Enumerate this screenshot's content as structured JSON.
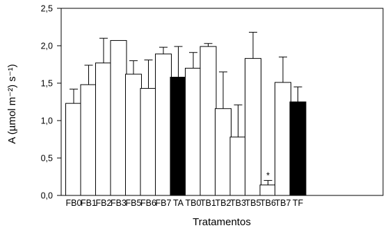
{
  "chart_data": {
    "type": "bar",
    "categories": [
      "FB0",
      "FB1",
      "FB2",
      "FB3",
      "FB5",
      "FB6",
      "FB7",
      "TA",
      "TB0",
      "TB1",
      "TB2",
      "TB3",
      "TB5",
      "TB6",
      "TB7",
      "TF"
    ],
    "values": [
      1.23,
      1.48,
      1.77,
      2.07,
      1.62,
      1.43,
      1.89,
      1.58,
      1.7,
      1.99,
      1.16,
      0.78,
      1.83,
      0.14,
      1.51,
      1.25
    ],
    "errors": [
      0.19,
      0.26,
      0.33,
      0.0,
      0.18,
      0.38,
      0.09,
      0.41,
      0.21,
      0.04,
      0.49,
      0.43,
      0.35,
      0.06,
      0.34,
      0.2
    ],
    "filled": [
      "TA",
      "TF"
    ],
    "yticks": [
      0.0,
      0.5,
      1.0,
      1.5,
      2.0,
      2.5
    ],
    "ytick_labels": [
      "0,0",
      "0,5",
      "1,0",
      "1,5",
      "2,0",
      "2,5"
    ],
    "ylim": [
      0,
      2.5
    ],
    "xlabel": "Tratamentos",
    "ylabel": "A (µmol m⁻²) s⁻¹)",
    "annotation": {
      "category": "TB6",
      "text": "*"
    },
    "colors": {
      "filled": "#000000",
      "empty": "#ffffff",
      "stroke": "#000000"
    }
  }
}
